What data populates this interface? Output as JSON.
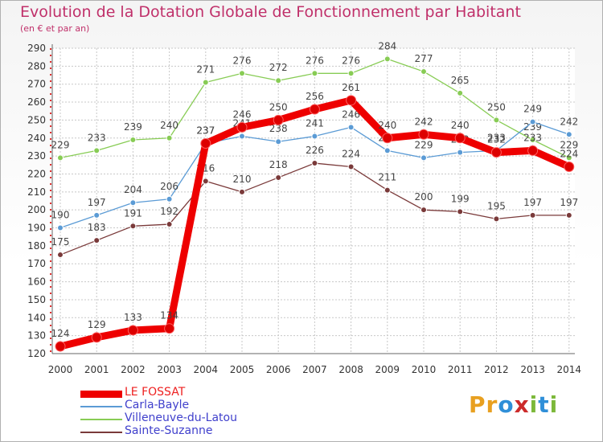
{
  "title": "Evolution de la Dotation Globale de Fonctionnement par Habitant",
  "subtitle": "(en € et par an)",
  "logo": {
    "letters": [
      "P",
      "r",
      "o",
      "x",
      "i",
      "t",
      "i"
    ],
    "colors": [
      "#e8a020",
      "#e8a020",
      "#2f8fd8",
      "#cc2a2a",
      "#7cb83a",
      "#2f8fd8",
      "#7cb83a"
    ]
  },
  "chart_data": {
    "type": "line",
    "x": [
      "2000",
      "2001",
      "2002",
      "2003",
      "2004",
      "2005",
      "2006",
      "2007",
      "2008",
      "2009",
      "2010",
      "2011",
      "2012",
      "2013",
      "2014"
    ],
    "ylim": [
      120,
      290
    ],
    "yticks": [
      120,
      130,
      140,
      150,
      160,
      170,
      180,
      190,
      200,
      210,
      220,
      230,
      240,
      250,
      260,
      270,
      280,
      290
    ],
    "grid": true,
    "legend_position": "bottom-left",
    "series": [
      {
        "name": "Villeneuve-du-Latou",
        "color": "#88cc55",
        "values": [
          229,
          233,
          239,
          240,
          271,
          276,
          272,
          276,
          276,
          284,
          277,
          265,
          250,
          239,
          229
        ]
      },
      {
        "name": "Carla-Bayle",
        "color": "#5b9bd5",
        "values": [
          190,
          197,
          204,
          206,
          237,
          241,
          238,
          241,
          246,
          233,
          229,
          232,
          233,
          249,
          242
        ]
      },
      {
        "name": "Sainte-Suzanne",
        "color": "#7a3a3a",
        "values": [
          175,
          183,
          191,
          192,
          216,
          210,
          218,
          226,
          224,
          211,
          200,
          199,
          195,
          197,
          197
        ]
      },
      {
        "name": "LE FOSSAT",
        "color": "#ee0000",
        "values": [
          124,
          129,
          133,
          134,
          237,
          246,
          250,
          256,
          261,
          240,
          242,
          240,
          232,
          233,
          224
        ]
      }
    ],
    "legend_order": [
      "LE FOSSAT",
      "Carla-Bayle",
      "Villeneuve-du-Latou",
      "Sainte-Suzanne"
    ]
  }
}
